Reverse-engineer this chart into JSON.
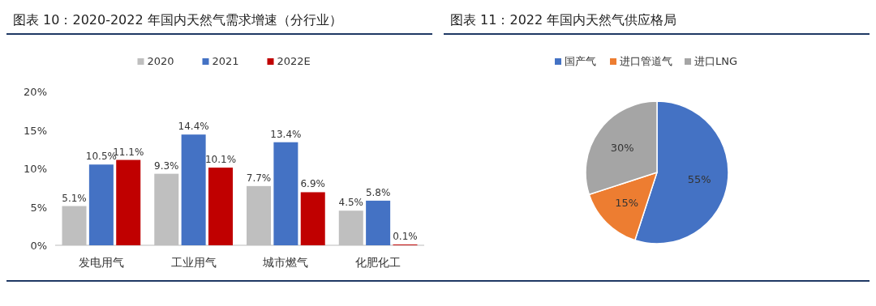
{
  "chart_data": [
    {
      "type": "bar",
      "title": "图表 10：2020-2022 年国内天然气需求增速（分行业）",
      "categories": [
        "发电用气",
        "工业用气",
        "城市燃气",
        "化肥化工"
      ],
      "series": [
        {
          "name": "2020",
          "color": "#bfbfbf",
          "values": [
            5.1,
            9.3,
            7.7,
            4.5
          ],
          "value_labels": [
            "5.1%",
            "9.3%",
            "7.7%",
            "4.5%"
          ]
        },
        {
          "name": "2021",
          "color": "#4472c4",
          "values": [
            10.5,
            14.4,
            13.4,
            5.8
          ],
          "value_labels": [
            "10.5%",
            "14.4%",
            "13.4%",
            "5.8%"
          ]
        },
        {
          "name": "2022E",
          "color": "#c00000",
          "values": [
            11.1,
            10.1,
            6.9,
            0.1
          ],
          "value_labels": [
            "11.1%",
            "10.1%",
            "6.9%",
            "0.1%"
          ]
        }
      ],
      "ylim": [
        0,
        20
      ],
      "yticks": [
        {
          "value": 0,
          "label": "0%"
        },
        {
          "value": 5,
          "label": "5%"
        },
        {
          "value": 10,
          "label": "10%"
        },
        {
          "value": 15,
          "label": "15%"
        },
        {
          "value": 20,
          "label": "20%"
        }
      ],
      "legend": "top",
      "grid": false
    },
    {
      "type": "pie",
      "title": "图表 11：2022 年国内天然气供应格局",
      "categories": [
        "国产气",
        "进口管道气",
        "进口LNG"
      ],
      "values": [
        55,
        15,
        30
      ],
      "colors": [
        "#4472c4",
        "#ed7d31",
        "#a5a5a5"
      ],
      "value_labels": [
        "55%",
        "15%",
        "30%"
      ],
      "legend": "top"
    }
  ]
}
